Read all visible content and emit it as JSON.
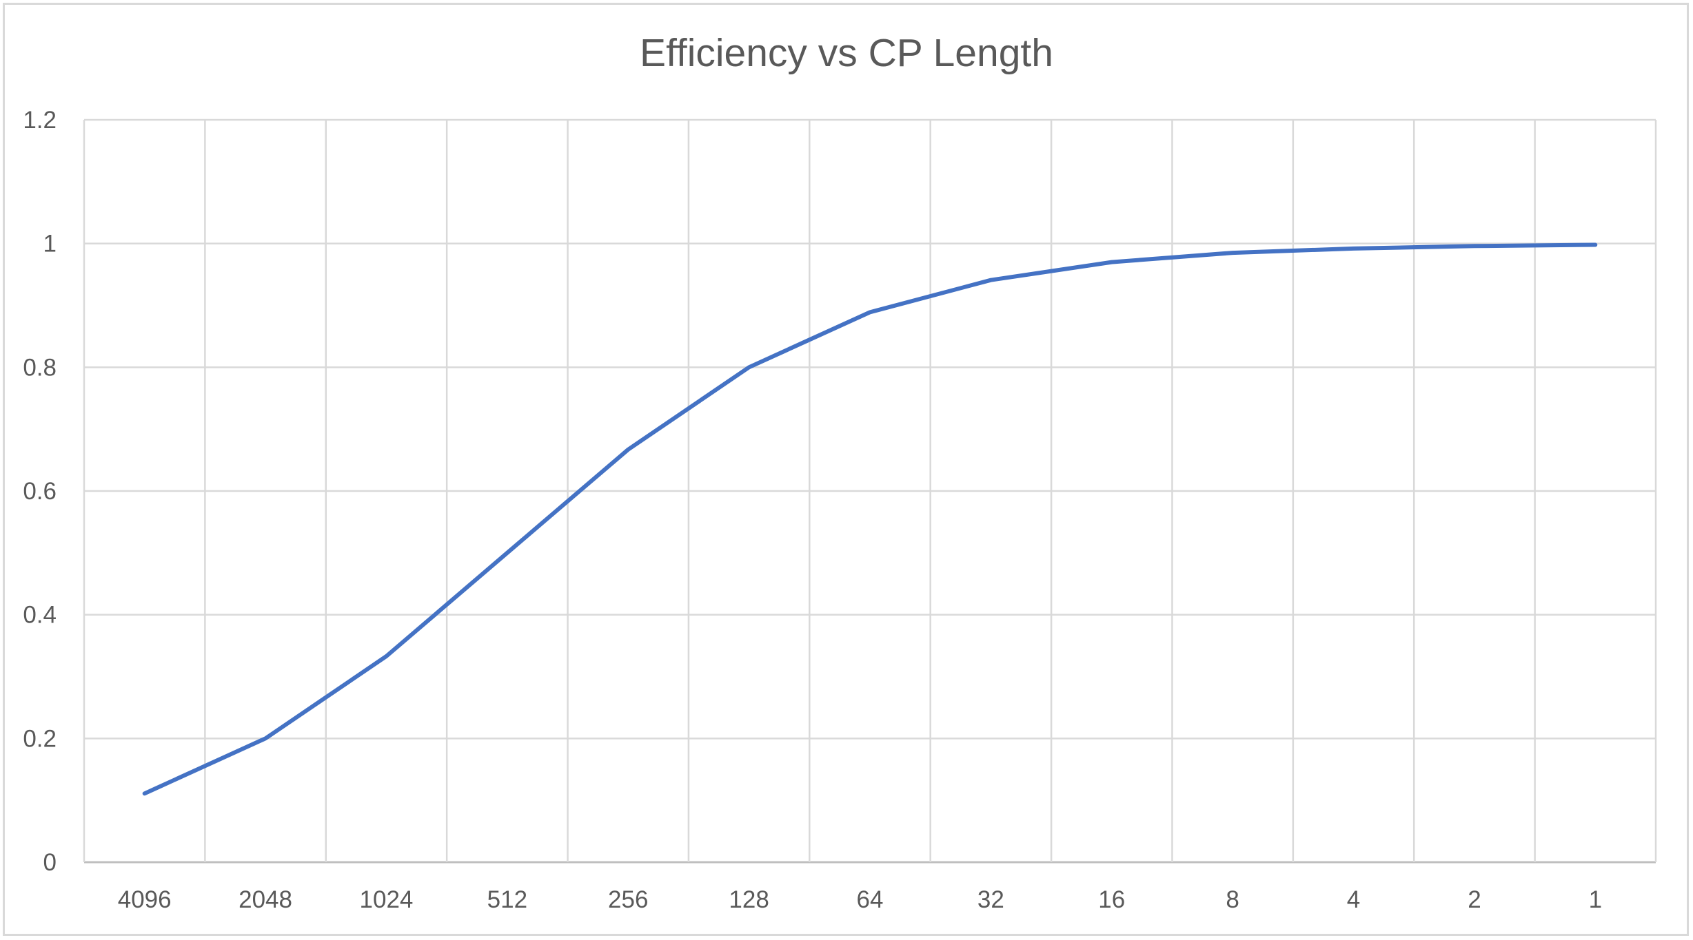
{
  "chart_data": {
    "type": "line",
    "title": "Efficiency vs CP Length",
    "xlabel": "",
    "ylabel": "",
    "categories": [
      "4096",
      "2048",
      "1024",
      "512",
      "256",
      "128",
      "64",
      "32",
      "16",
      "8",
      "4",
      "2",
      "1"
    ],
    "series": [
      {
        "values": [
          0.111,
          0.2,
          0.333,
          0.5,
          0.667,
          0.8,
          0.889,
          0.941,
          0.97,
          0.985,
          0.992,
          0.996,
          0.998
        ],
        "color": "#4472C4"
      }
    ],
    "ylim": [
      0,
      1.2
    ],
    "yticks": [
      "0",
      "0.2",
      "0.4",
      "0.6",
      "0.8",
      "1",
      "1.2"
    ],
    "grid": true,
    "legend": "none"
  }
}
